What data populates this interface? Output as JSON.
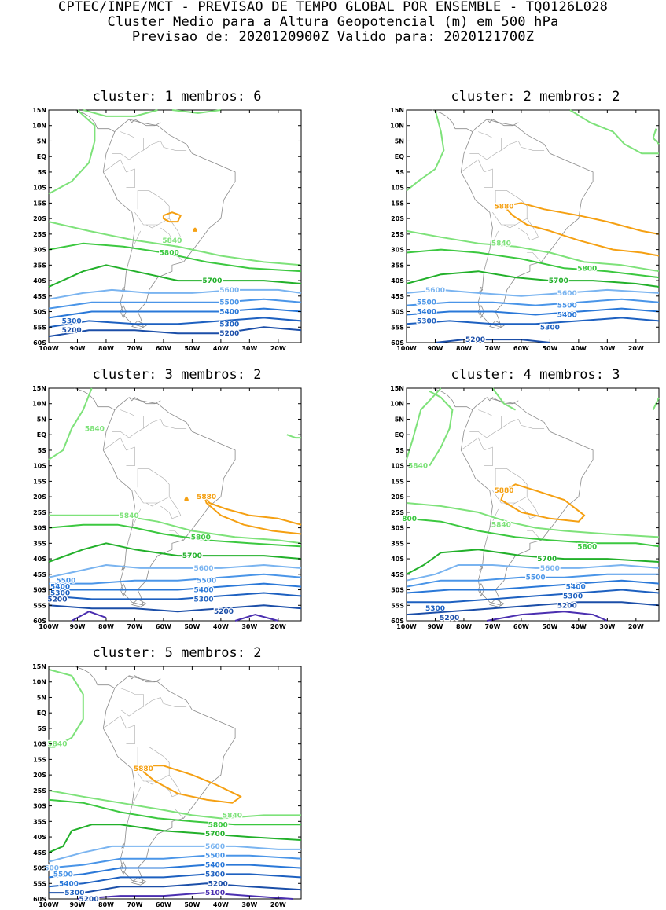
{
  "header": {
    "line1": "CPTEC/INPE/MCT - PREVISAO DE TEMPO GLOBAL POR ENSEMBLE - TQ0126L028",
    "line2": "Cluster Medio para a Altura Geopotencial (m) em 500 hPa",
    "line3": "Previsao de: 2020120900Z   Valido para: 2020121700Z"
  },
  "lat_ticks": [
    "15N",
    "10N",
    "5N",
    "EQ",
    "5S",
    "10S",
    "15S",
    "20S",
    "25S",
    "30S",
    "35S",
    "40S",
    "45S",
    "50S",
    "55S",
    "60S"
  ],
  "lon_ticks": [
    "100W",
    "90W",
    "80W",
    "70W",
    "60W",
    "50W",
    "40W",
    "30W",
    "20W"
  ],
  "contour_colors": {
    "5100": "#4b2fb0",
    "5200": "#1b4ea8",
    "5300": "#1d60c0",
    "5400": "#2a78d8",
    "5500": "#4a95e8",
    "5600": "#7ab4f0",
    "5700": "#22b02a",
    "5800": "#3cc840",
    "5840": "#7ee27a",
    "5880": "#f5a012"
  },
  "panels": [
    {
      "title": "cluster: 1   membros: 6",
      "labels": [
        {
          "text": "5840",
          "lon": -57,
          "lat": -27,
          "color": "5840"
        },
        {
          "text": "5800",
          "lon": -58,
          "lat": -31,
          "color": "5800"
        },
        {
          "text": "5700",
          "lon": -43,
          "lat": -40,
          "color": "5700"
        },
        {
          "text": "5600",
          "lon": -37,
          "lat": -43,
          "color": "5600"
        },
        {
          "text": "5500",
          "lon": -37,
          "lat": -47,
          "color": "5500"
        },
        {
          "text": "5400",
          "lon": -37,
          "lat": -50,
          "color": "5400"
        },
        {
          "text": "5300",
          "lon": -92,
          "lat": -53,
          "color": "5300"
        },
        {
          "text": "5300",
          "lon": -37,
          "lat": -54,
          "color": "5300"
        },
        {
          "text": "5200",
          "lon": -92,
          "lat": -56,
          "color": "5200"
        },
        {
          "text": "5200",
          "lon": -37,
          "lat": -57,
          "color": "5200"
        }
      ]
    },
    {
      "title": "cluster: 2   membros: 2",
      "labels": [
        {
          "text": "5880",
          "lon": -66,
          "lat": -16,
          "color": "5880"
        },
        {
          "text": "5840",
          "lon": -67,
          "lat": -28,
          "color": "5840"
        },
        {
          "text": "5800",
          "lon": -37,
          "lat": -36,
          "color": "5800"
        },
        {
          "text": "5700",
          "lon": -47,
          "lat": -40,
          "color": "5700"
        },
        {
          "text": "5600",
          "lon": -90,
          "lat": -43,
          "color": "5600"
        },
        {
          "text": "5600",
          "lon": -44,
          "lat": -44,
          "color": "5600"
        },
        {
          "text": "5500",
          "lon": -93,
          "lat": -47,
          "color": "5500"
        },
        {
          "text": "5500",
          "lon": -44,
          "lat": -48,
          "color": "5500"
        },
        {
          "text": "5400",
          "lon": -93,
          "lat": -50,
          "color": "5400"
        },
        {
          "text": "5400",
          "lon": -44,
          "lat": -51,
          "color": "5400"
        },
        {
          "text": "5300",
          "lon": -93,
          "lat": -53,
          "color": "5300"
        },
        {
          "text": "5300",
          "lon": -50,
          "lat": -55,
          "color": "5300"
        },
        {
          "text": "5200",
          "lon": -76,
          "lat": -59,
          "color": "5200"
        }
      ]
    },
    {
      "title": "cluster: 3   membros: 2",
      "labels": [
        {
          "text": "5840",
          "lon": -84,
          "lat": 2,
          "color": "5840"
        },
        {
          "text": "5880",
          "lon": -45,
          "lat": -20,
          "color": "5880"
        },
        {
          "text": "5840",
          "lon": -72,
          "lat": -26,
          "color": "5840"
        },
        {
          "text": "5800",
          "lon": -47,
          "lat": -33,
          "color": "5800"
        },
        {
          "text": "5700",
          "lon": -50,
          "lat": -39,
          "color": "5700"
        },
        {
          "text": "5600",
          "lon": -46,
          "lat": -43,
          "color": "5600"
        },
        {
          "text": "5500",
          "lon": -94,
          "lat": -47,
          "color": "5500"
        },
        {
          "text": "5500",
          "lon": -45,
          "lat": -47,
          "color": "5500"
        },
        {
          "text": "5400",
          "lon": -96,
          "lat": -49,
          "color": "5400"
        },
        {
          "text": "5400",
          "lon": -46,
          "lat": -50,
          "color": "5400"
        },
        {
          "text": "5300",
          "lon": -96,
          "lat": -51,
          "color": "5300"
        },
        {
          "text": "5300",
          "lon": -46,
          "lat": -53,
          "color": "5300"
        },
        {
          "text": "5200",
          "lon": -97,
          "lat": -53,
          "color": "5200"
        },
        {
          "text": "5200",
          "lon": -39,
          "lat": -57,
          "color": "5200"
        }
      ]
    },
    {
      "title": "cluster: 4   membros: 3",
      "labels": [
        {
          "text": "5840",
          "lon": -96,
          "lat": -10,
          "color": "5840"
        },
        {
          "text": "5880",
          "lon": -66,
          "lat": -18,
          "color": "5880"
        },
        {
          "text": "800",
          "lon": -99,
          "lat": -27,
          "color": "5800"
        },
        {
          "text": "5840",
          "lon": -67,
          "lat": -29,
          "color": "5840"
        },
        {
          "text": "5800",
          "lon": -37,
          "lat": -36,
          "color": "5800"
        },
        {
          "text": "5700",
          "lon": -51,
          "lat": -40,
          "color": "5700"
        },
        {
          "text": "5600",
          "lon": -50,
          "lat": -43,
          "color": "5600"
        },
        {
          "text": "5500",
          "lon": -55,
          "lat": -46,
          "color": "5500"
        },
        {
          "text": "5400",
          "lon": -41,
          "lat": -49,
          "color": "5400"
        },
        {
          "text": "5300",
          "lon": -42,
          "lat": -52,
          "color": "5300"
        },
        {
          "text": "5200",
          "lon": -44,
          "lat": -55,
          "color": "5200"
        },
        {
          "text": "5300",
          "lon": -90,
          "lat": -56,
          "color": "5300"
        },
        {
          "text": "5200",
          "lon": -85,
          "lat": -59,
          "color": "5200"
        }
      ]
    },
    {
      "title": "cluster: 5   membros: 2",
      "labels": [
        {
          "text": "5840",
          "lon": -97,
          "lat": -10,
          "color": "5840"
        },
        {
          "text": "5880",
          "lon": -67,
          "lat": -18,
          "color": "5880"
        },
        {
          "text": "5840",
          "lon": -36,
          "lat": -33,
          "color": "5840"
        },
        {
          "text": "5800",
          "lon": -41,
          "lat": -36,
          "color": "5800"
        },
        {
          "text": "5700",
          "lon": -42,
          "lat": -39,
          "color": "5700"
        },
        {
          "text": "5600",
          "lon": -42,
          "lat": -43,
          "color": "5600"
        },
        {
          "text": "600",
          "lon": -99,
          "lat": -50,
          "color": "5600"
        },
        {
          "text": "5500",
          "lon": -42,
          "lat": -46,
          "color": "5500"
        },
        {
          "text": "5500",
          "lon": -95,
          "lat": -52,
          "color": "5500"
        },
        {
          "text": "5400",
          "lon": -42,
          "lat": -49,
          "color": "5400"
        },
        {
          "text": "5400",
          "lon": -93,
          "lat": -55,
          "color": "5400"
        },
        {
          "text": "5300",
          "lon": -42,
          "lat": -52,
          "color": "5300"
        },
        {
          "text": "5300",
          "lon": -91,
          "lat": -58,
          "color": "5300"
        },
        {
          "text": "5200",
          "lon": -41,
          "lat": -55,
          "color": "5200"
        },
        {
          "text": "5200",
          "lon": -86,
          "lat": -60,
          "color": "5200"
        },
        {
          "text": "5100",
          "lon": -42,
          "lat": -58,
          "color": "5100"
        }
      ]
    }
  ]
}
